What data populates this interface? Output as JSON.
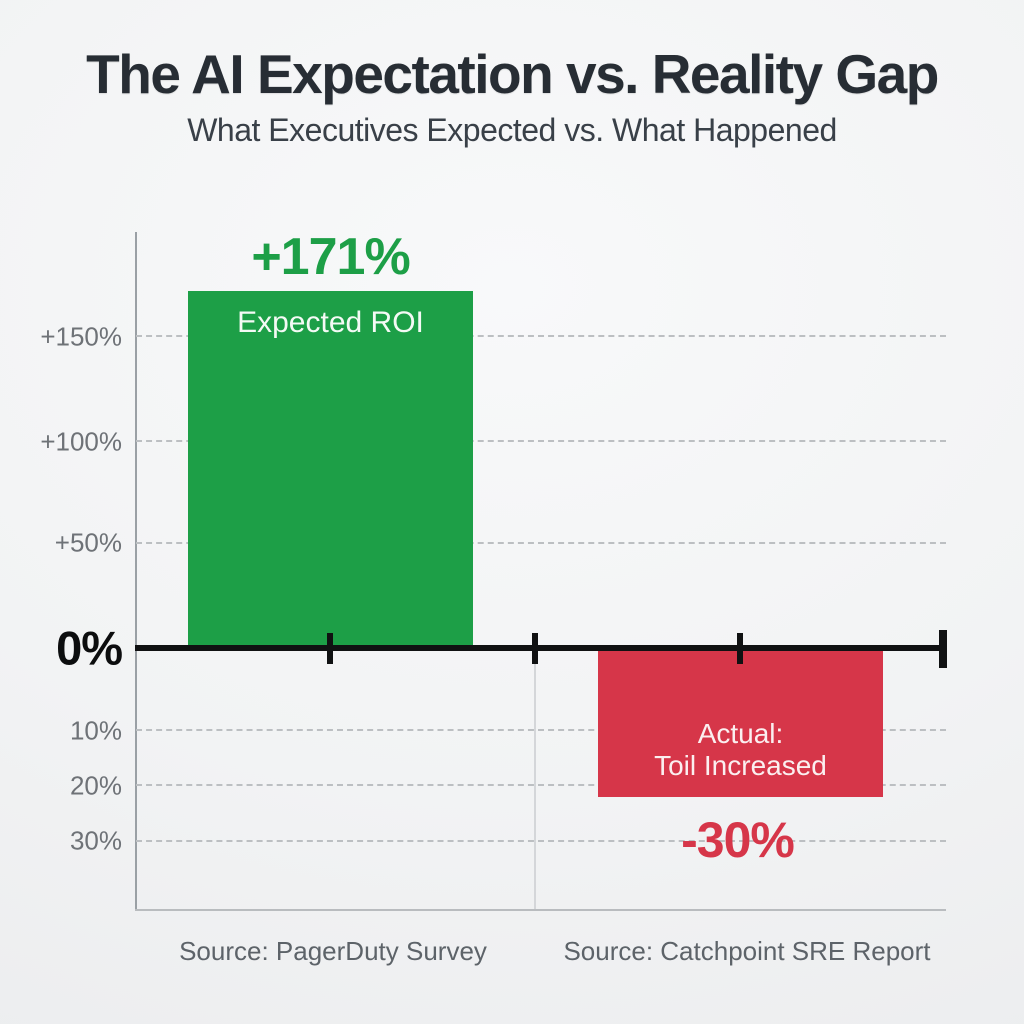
{
  "header": {
    "title": "The AI Expectation vs. Reality Gap",
    "subtitle": "What Executives Expected vs. What Happened"
  },
  "chart_data": {
    "type": "bar",
    "title": "The AI Expectation vs. Reality Gap",
    "subtitle": "What Executives Expected vs. What Happened",
    "categories": [
      "Expected ROI",
      "Actual: Toil Increased"
    ],
    "values": [
      171,
      -30
    ],
    "bars": [
      {
        "label": "Expected ROI",
        "value": 171,
        "value_label": "+171%",
        "color": "#1d9f47",
        "source": "Source: PagerDuty Survey"
      },
      {
        "label_line1": "Actual:",
        "label_line2": "Toil Increased",
        "value": -30,
        "value_label": "-30%",
        "color": "#d63649",
        "source": "Source: Catchpoint SRE Report"
      }
    ],
    "ylim": [
      -40,
      200
    ],
    "yticks_shown": [
      "+150%",
      "+100%",
      "+50%",
      "0%",
      "10%",
      "20%",
      "30%"
    ],
    "grid": "horizontal dashed",
    "legend": "none",
    "baseline": "0% thick black line with tick marks"
  },
  "axis": {
    "tick_labels": {
      "p150": "+150%",
      "p100": "+100%",
      "p50": "+50%",
      "zero": "0%",
      "n10": "10%",
      "n20": "20%",
      "n30": "30%"
    }
  },
  "footer": {
    "sources": [
      "Source: PagerDuty Survey",
      "Source: Catchpoint SRE Report"
    ]
  },
  "colors": {
    "positive_bar": "#1d9f47",
    "negative_bar": "#d63649",
    "title_text": "#272d34",
    "axis_label_text": "#6e7277",
    "zero_line": "#101112",
    "source_text": "#5d6369",
    "background": "#f2f3f4"
  }
}
